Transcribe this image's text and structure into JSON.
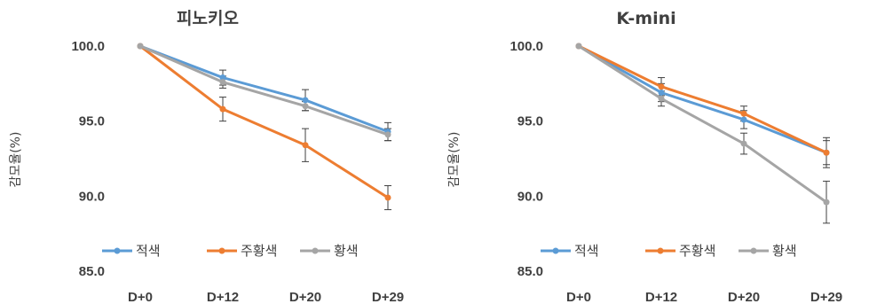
{
  "chart_data": [
    {
      "type": "line",
      "title": "피노키오",
      "ylabel": "감모율(%)",
      "xlabel": "",
      "categories": [
        "D+0",
        "D+12",
        "D+20",
        "D+29"
      ],
      "ylim": [
        85,
        100
      ],
      "yticks": [
        "85.0",
        "90.0",
        "95.0",
        "100.0"
      ],
      "grid": false,
      "legend": "bottom",
      "series": [
        {
          "name": "적색",
          "color": "#5b9bd5",
          "values": [
            100.0,
            97.9,
            96.4,
            94.3
          ],
          "err": [
            0,
            0.5,
            0.7,
            0.6
          ]
        },
        {
          "name": "주황색",
          "color": "#ed7d31",
          "values": [
            100.0,
            95.8,
            93.4,
            89.9
          ],
          "err": [
            0,
            0.8,
            1.1,
            0.8
          ]
        },
        {
          "name": "황색",
          "color": "#a5a5a5",
          "values": [
            100.0,
            97.6,
            96.0,
            94.1
          ],
          "err": [
            0,
            0.4,
            0.3,
            0.4
          ]
        }
      ]
    },
    {
      "type": "line",
      "title": "K-mini",
      "ylabel": "감모율(%)",
      "xlabel": "",
      "categories": [
        "D+0",
        "D+12",
        "D+20",
        "D+29"
      ],
      "ylim": [
        85,
        100
      ],
      "yticks": [
        "85.0",
        "90.0",
        "95.0",
        "100.0"
      ],
      "grid": false,
      "legend": "bottom",
      "series": [
        {
          "name": "적색",
          "color": "#5b9bd5",
          "values": [
            100.0,
            96.9,
            95.1,
            92.9
          ],
          "err": [
            0,
            0.6,
            0.6,
            0.8
          ]
        },
        {
          "name": "주황색",
          "color": "#ed7d31",
          "values": [
            100.0,
            97.3,
            95.5,
            92.9
          ],
          "err": [
            0,
            0.6,
            0.5,
            1.0
          ]
        },
        {
          "name": "황색",
          "color": "#a5a5a5",
          "values": [
            100.0,
            96.5,
            93.5,
            89.6
          ],
          "err": [
            0,
            0.5,
            0.7,
            1.4
          ]
        }
      ]
    }
  ]
}
